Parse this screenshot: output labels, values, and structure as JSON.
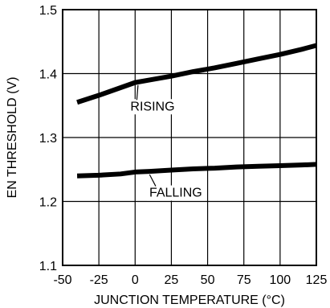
{
  "chart_data": {
    "type": "line",
    "xlabel": "JUNCTION TEMPERATURE (°C)",
    "ylabel": "EN THRESHOLD (V)",
    "xlim": [
      -50,
      125
    ],
    "ylim": [
      1.1,
      1.5
    ],
    "x_ticks": [
      -50,
      -25,
      0,
      25,
      50,
      75,
      100,
      125
    ],
    "x_tick_labels": [
      "-50",
      "-25",
      "0",
      "25",
      "50",
      "75",
      "100",
      "125"
    ],
    "y_ticks": [
      1.1,
      1.2,
      1.3,
      1.4,
      1.5
    ],
    "y_tick_labels": [
      "1.1",
      "1.2",
      "1.3",
      "1.4",
      "1.5"
    ],
    "grid": true,
    "colors": {
      "line": "#000000",
      "grid": "#000000"
    },
    "series": [
      {
        "x": [
          -40,
          -25,
          -10,
          0,
          10,
          25,
          40,
          55,
          70,
          85,
          100,
          115,
          125
        ],
        "y": [
          1.355,
          1.366,
          1.378,
          1.386,
          1.39,
          1.396,
          1.403,
          1.409,
          1.416,
          1.423,
          1.43,
          1.438,
          1.444
        ]
      },
      {
        "x": [
          -40,
          -25,
          -10,
          0,
          10,
          25,
          40,
          55,
          70,
          85,
          100,
          115,
          125
        ],
        "y": [
          1.24,
          1.241,
          1.243,
          1.246,
          1.247,
          1.249,
          1.251,
          1.252,
          1.254,
          1.255,
          1.256,
          1.257,
          1.258
        ]
      }
    ],
    "annotations": [
      {
        "text": "RISING",
        "x": 12,
        "y": 1.35,
        "arrow_x": 2,
        "arrow_y": 1.387
      },
      {
        "text": "FALLING",
        "x": 28,
        "y": 1.215,
        "arrow_x": 10,
        "arrow_y": 1.247
      }
    ]
  }
}
